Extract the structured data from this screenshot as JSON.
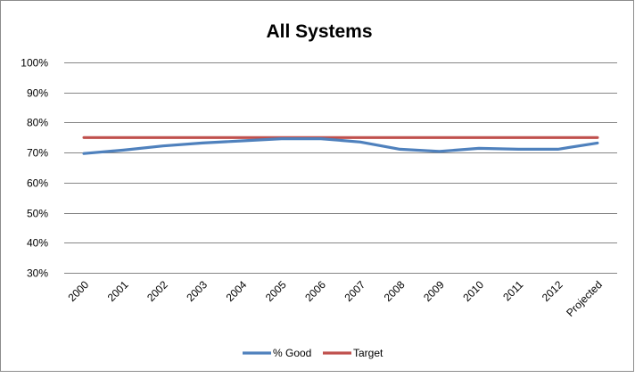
{
  "chart_data": {
    "type": "line",
    "title": "All Systems",
    "xlabel": "",
    "ylabel": "",
    "categories": [
      "2000",
      "2001",
      "2002",
      "2003",
      "2004",
      "2005",
      "2006",
      "2007",
      "2008",
      "2009",
      "2010",
      "2011",
      "2012",
      "Projected"
    ],
    "yticks": [
      "30%",
      "40%",
      "50%",
      "60%",
      "70%",
      "80%",
      "90%",
      "100%"
    ],
    "ylim": [
      30,
      100
    ],
    "grid": true,
    "legend": "bottom",
    "series": [
      {
        "name": "% Good",
        "color": "#4f81bd",
        "values": [
          69.7,
          70.8,
          72.2,
          73.2,
          73.9,
          74.6,
          74.6,
          73.5,
          71.1,
          70.4,
          71.4,
          71.1,
          71.1,
          73.2
        ]
      },
      {
        "name": "Target",
        "color": "#c0504d",
        "values": [
          75,
          75,
          75,
          75,
          75,
          75,
          75,
          75,
          75,
          75,
          75,
          75,
          75,
          75
        ]
      }
    ]
  }
}
